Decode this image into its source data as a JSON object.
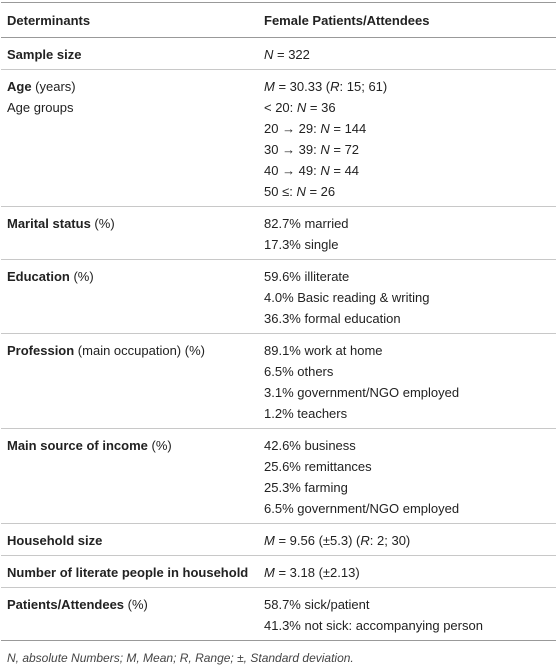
{
  "table": {
    "header": [
      "Determinants",
      "Female Patients/Attendees"
    ],
    "rows": [
      {
        "label": [
          [
            {
              "text": "Sample size",
              "style": "bold"
            }
          ]
        ],
        "value": [
          [
            {
              "text": "N",
              "style": "italic"
            },
            {
              "text": " = 322"
            }
          ]
        ]
      },
      {
        "label": [
          [
            {
              "text": "Age",
              "style": "bold"
            },
            {
              "text": " (years)"
            }
          ],
          [
            {
              "text": "Age groups"
            }
          ]
        ],
        "value": [
          [
            {
              "text": "M",
              "style": "italic"
            },
            {
              "text": " = 30.33 ("
            },
            {
              "text": "R",
              "style": "italic"
            },
            {
              "text": ": 15; 61)"
            }
          ],
          [
            {
              "text": "< 20: "
            },
            {
              "text": "N",
              "style": "italic"
            },
            {
              "text": " = 36"
            }
          ],
          [
            {
              "text": "20 → 29: "
            },
            {
              "text": "N",
              "style": "italic"
            },
            {
              "text": " = 144"
            }
          ],
          [
            {
              "text": "30 → 39: "
            },
            {
              "text": "N",
              "style": "italic"
            },
            {
              "text": " = 72"
            }
          ],
          [
            {
              "text": "40 → 49: "
            },
            {
              "text": "N",
              "style": "italic"
            },
            {
              "text": " = 44"
            }
          ],
          [
            {
              "text": "50 ≤: "
            },
            {
              "text": "N",
              "style": "italic"
            },
            {
              "text": " = 26"
            }
          ]
        ]
      },
      {
        "label": [
          [
            {
              "text": "Marital status",
              "style": "bold"
            },
            {
              "text": " (%)"
            }
          ]
        ],
        "value": [
          [
            {
              "text": "82.7% married"
            }
          ],
          [
            {
              "text": "17.3% single"
            }
          ]
        ]
      },
      {
        "label": [
          [
            {
              "text": "Education",
              "style": "bold"
            },
            {
              "text": " (%)"
            }
          ]
        ],
        "value": [
          [
            {
              "text": "59.6% illiterate"
            }
          ],
          [
            {
              "text": "4.0% Basic reading & writing"
            }
          ],
          [
            {
              "text": "36.3% formal education"
            }
          ]
        ]
      },
      {
        "label": [
          [
            {
              "text": "Profession",
              "style": "bold"
            },
            {
              "text": " (main occupation) (%)"
            }
          ]
        ],
        "value": [
          [
            {
              "text": "89.1% work at home"
            }
          ],
          [
            {
              "text": "6.5% others"
            }
          ],
          [
            {
              "text": "3.1% government/NGO employed"
            }
          ],
          [
            {
              "text": "1.2% teachers"
            }
          ]
        ]
      },
      {
        "label": [
          [
            {
              "text": "Main source of income",
              "style": "bold"
            },
            {
              "text": " (%)"
            }
          ]
        ],
        "value": [
          [
            {
              "text": "42.6% business"
            }
          ],
          [
            {
              "text": "25.6% remittances"
            }
          ],
          [
            {
              "text": "25.3% farming"
            }
          ],
          [
            {
              "text": "6.5% government/NGO employed"
            }
          ]
        ]
      },
      {
        "label": [
          [
            {
              "text": "Household size",
              "style": "bold"
            }
          ]
        ],
        "value": [
          [
            {
              "text": "M",
              "style": "italic"
            },
            {
              "text": " = 9.56 (±5.3) ("
            },
            {
              "text": "R",
              "style": "italic"
            },
            {
              "text": ": 2; 30)"
            }
          ]
        ]
      },
      {
        "label": [
          [
            {
              "text": "Number of literate people in household",
              "style": "bold"
            }
          ]
        ],
        "value": [
          [
            {
              "text": "M",
              "style": "italic"
            },
            {
              "text": " = 3.18 (±2.13)"
            }
          ]
        ]
      },
      {
        "label": [
          [
            {
              "text": "Patients/Attendees",
              "style": "bold"
            },
            {
              "text": " (%)"
            }
          ]
        ],
        "value": [
          [
            {
              "text": "58.7% sick/patient"
            }
          ],
          [
            {
              "text": "41.3% not sick: accompanying person"
            }
          ]
        ]
      }
    ],
    "footnote": "N, absolute Numbers; M, Mean; R, Range; ±, Standard deviation."
  }
}
